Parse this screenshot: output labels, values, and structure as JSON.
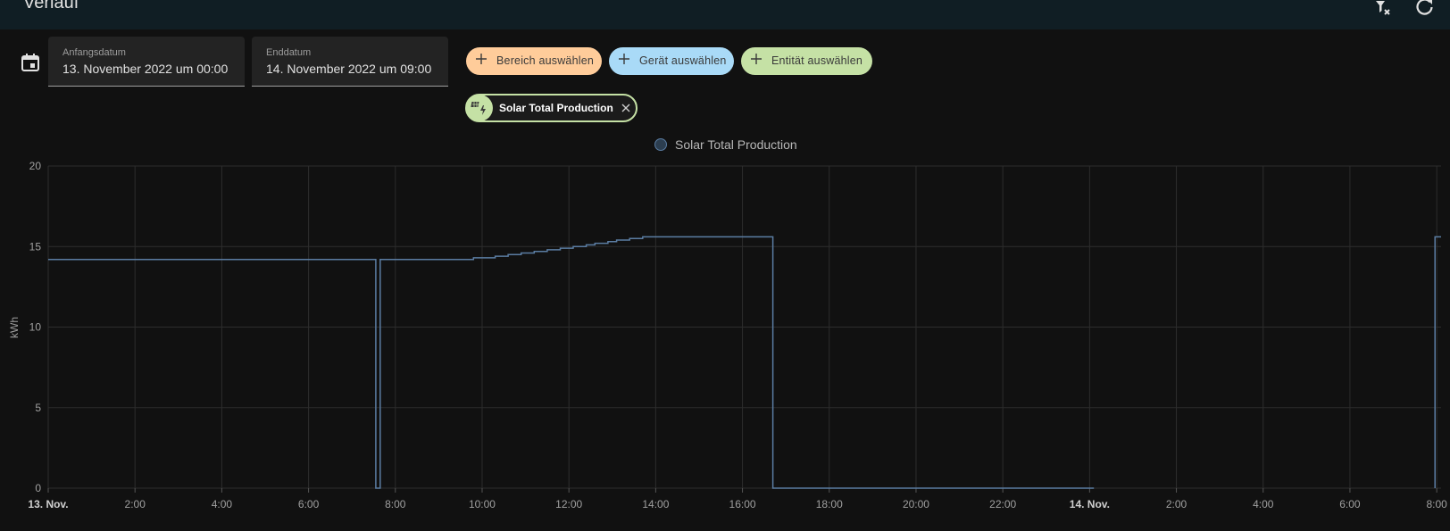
{
  "header": {
    "title": "Verlauf"
  },
  "filters": {
    "start": {
      "label": "Anfangsdatum",
      "value": "13. November 2022 um 00:00"
    },
    "end": {
      "label": "Enddatum",
      "value": "14. November 2022 um 09:00"
    },
    "area_chip": {
      "label": "Bereich auswählen",
      "color": "#ffcc9a"
    },
    "device_chip": {
      "label": "Gerät auswählen",
      "color": "#a9daf7"
    },
    "entity_chip": {
      "label": "Entität auswählen",
      "color": "#c5e1a5"
    }
  },
  "selected_entity": {
    "label": "Solar Total Production",
    "icon": "solar-power-icon"
  },
  "legend": {
    "label": "Solar Total Production",
    "color": "#5b7da3"
  },
  "colors": {
    "line": "#5b7da3",
    "grid": "#2d2d2d",
    "axis_text": "#a0a0a0"
  },
  "chart_data": {
    "type": "line",
    "step": true,
    "ylabel": "kWh",
    "ylim": [
      0,
      20
    ],
    "yticks": [
      0,
      5,
      10,
      15,
      20
    ],
    "xlim_hours": [
      0,
      32.1
    ],
    "xticks": [
      {
        "h": 0,
        "label": "13. Nov.",
        "bold": true
      },
      {
        "h": 2,
        "label": "2:00"
      },
      {
        "h": 4,
        "label": "4:00"
      },
      {
        "h": 6,
        "label": "6:00"
      },
      {
        "h": 8,
        "label": "8:00"
      },
      {
        "h": 10,
        "label": "10:00"
      },
      {
        "h": 12,
        "label": "12:00"
      },
      {
        "h": 14,
        "label": "14:00"
      },
      {
        "h": 16,
        "label": "16:00"
      },
      {
        "h": 18,
        "label": "18:00"
      },
      {
        "h": 20,
        "label": "20:00"
      },
      {
        "h": 22,
        "label": "22:00"
      },
      {
        "h": 24,
        "label": "14. Nov.",
        "bold": true
      },
      {
        "h": 26,
        "label": "2:00"
      },
      {
        "h": 28,
        "label": "4:00"
      },
      {
        "h": 30,
        "label": "6:00"
      },
      {
        "h": 32,
        "label": "8:00"
      }
    ],
    "series": [
      {
        "name": "Solar Total Production",
        "points": [
          [
            0,
            14.2
          ],
          [
            7.55,
            14.2
          ],
          [
            7.55,
            0
          ],
          [
            7.65,
            0
          ],
          [
            7.65,
            14.2
          ],
          [
            9.8,
            14.2
          ],
          [
            9.8,
            14.3
          ],
          [
            10.3,
            14.3
          ],
          [
            10.3,
            14.4
          ],
          [
            10.6,
            14.4
          ],
          [
            10.6,
            14.5
          ],
          [
            10.9,
            14.5
          ],
          [
            10.9,
            14.6
          ],
          [
            11.2,
            14.6
          ],
          [
            11.2,
            14.7
          ],
          [
            11.5,
            14.7
          ],
          [
            11.5,
            14.8
          ],
          [
            11.8,
            14.8
          ],
          [
            11.8,
            14.9
          ],
          [
            12.1,
            14.9
          ],
          [
            12.1,
            15.0
          ],
          [
            12.4,
            15.0
          ],
          [
            12.4,
            15.1
          ],
          [
            12.6,
            15.1
          ],
          [
            12.6,
            15.2
          ],
          [
            12.9,
            15.2
          ],
          [
            12.9,
            15.3
          ],
          [
            13.1,
            15.3
          ],
          [
            13.1,
            15.4
          ],
          [
            13.4,
            15.4
          ],
          [
            13.4,
            15.5
          ],
          [
            13.7,
            15.5
          ],
          [
            13.7,
            15.6
          ],
          [
            16.7,
            15.6
          ],
          [
            16.7,
            0
          ],
          [
            24.1,
            0
          ]
        ]
      },
      {
        "name": "Solar Total Production (segment)",
        "points": [
          [
            31.96,
            0
          ],
          [
            31.96,
            15.6
          ],
          [
            32.1,
            15.6
          ]
        ]
      }
    ]
  }
}
